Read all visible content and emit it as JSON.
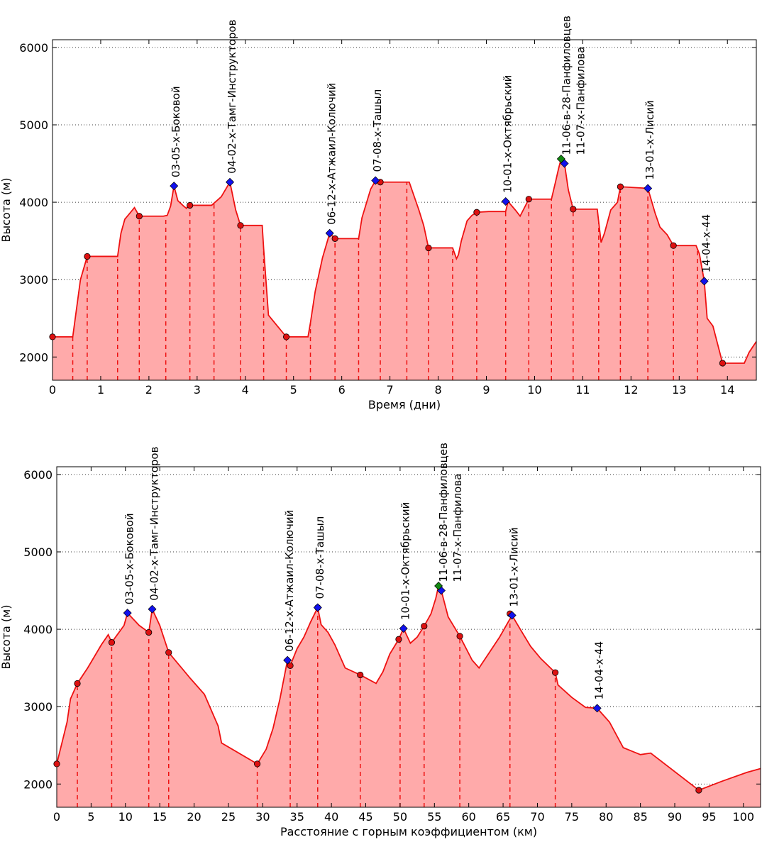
{
  "chart_data": [
    {
      "type": "area",
      "xlabel": "Время (дни)",
      "ylabel": "Высота (м)",
      "xlim": [
        0,
        14.6
      ],
      "ylim": [
        1700,
        6100
      ],
      "xticks": [
        0,
        1,
        2,
        3,
        4,
        5,
        6,
        7,
        8,
        9,
        10,
        11,
        12,
        13,
        14
      ],
      "yticks": [
        2000,
        3000,
        4000,
        5000,
        6000
      ],
      "grid": "horizontal-dotted",
      "colors": {
        "line": "#ee1111",
        "fill": "#ffaaaa",
        "camp": "#dd1111",
        "pass": "#1111ee",
        "summit": "#118811"
      },
      "profile": [
        [
          0.0,
          2260
        ],
        [
          0.42,
          2260
        ],
        [
          0.58,
          3000
        ],
        [
          0.72,
          3300
        ],
        [
          1.05,
          3300
        ],
        [
          1.35,
          3300
        ],
        [
          1.42,
          3600
        ],
        [
          1.5,
          3780
        ],
        [
          1.62,
          3870
        ],
        [
          1.7,
          3930
        ],
        [
          1.8,
          3820
        ],
        [
          2.3,
          3820
        ],
        [
          2.38,
          3830
        ],
        [
          2.45,
          3950
        ],
        [
          2.52,
          4210
        ],
        [
          2.6,
          4020
        ],
        [
          2.72,
          3950
        ],
        [
          2.78,
          3920
        ],
        [
          2.82,
          3960
        ],
        [
          2.95,
          3960
        ],
        [
          3.3,
          3960
        ],
        [
          3.5,
          4070
        ],
        [
          3.68,
          4260
        ],
        [
          3.8,
          3900
        ],
        [
          3.9,
          3700
        ],
        [
          4.35,
          3700
        ],
        [
          4.38,
          3400
        ],
        [
          4.48,
          2540
        ],
        [
          4.85,
          2260
        ],
        [
          5.3,
          2260
        ],
        [
          5.35,
          2440
        ],
        [
          5.45,
          2850
        ],
        [
          5.6,
          3280
        ],
        [
          5.75,
          3600
        ],
        [
          5.86,
          3530
        ],
        [
          6.35,
          3530
        ],
        [
          6.42,
          3800
        ],
        [
          6.6,
          4170
        ],
        [
          6.7,
          4280
        ],
        [
          6.8,
          4260
        ],
        [
          7.4,
          4260
        ],
        [
          7.6,
          3900
        ],
        [
          7.7,
          3700
        ],
        [
          7.8,
          3410
        ],
        [
          8.3,
          3410
        ],
        [
          8.38,
          3270
        ],
        [
          8.42,
          3320
        ],
        [
          8.48,
          3500
        ],
        [
          8.6,
          3760
        ],
        [
          8.7,
          3830
        ],
        [
          8.8,
          3870
        ],
        [
          9.05,
          3880
        ],
        [
          9.4,
          3880
        ],
        [
          9.45,
          4010
        ],
        [
          9.6,
          3900
        ],
        [
          9.7,
          3820
        ],
        [
          9.88,
          4040
        ],
        [
          10.35,
          4040
        ],
        [
          10.43,
          4250
        ],
        [
          10.5,
          4440
        ],
        [
          10.55,
          4560
        ],
        [
          10.62,
          4500
        ],
        [
          10.7,
          4160
        ],
        [
          10.8,
          3910
        ],
        [
          11.3,
          3910
        ],
        [
          11.38,
          3480
        ],
        [
          11.45,
          3600
        ],
        [
          11.58,
          3900
        ],
        [
          11.72,
          4000
        ],
        [
          11.78,
          4200
        ],
        [
          12.35,
          4180
        ],
        [
          12.5,
          3860
        ],
        [
          12.6,
          3680
        ],
        [
          12.75,
          3580
        ],
        [
          12.88,
          3440
        ],
        [
          13.35,
          3440
        ],
        [
          13.42,
          3330
        ],
        [
          13.52,
          2980
        ],
        [
          13.58,
          2500
        ],
        [
          13.7,
          2400
        ],
        [
          13.9,
          1920
        ],
        [
          14.35,
          1920
        ],
        [
          14.45,
          2060
        ],
        [
          14.6,
          2200
        ]
      ],
      "dashes": [
        0.42,
        0.72,
        1.35,
        1.8,
        2.35,
        2.85,
        3.35,
        3.9,
        4.38,
        4.85,
        5.35,
        5.86,
        6.35,
        6.8,
        7.35,
        7.8,
        8.3,
        8.8,
        9.4,
        9.88,
        10.35,
        10.8,
        11.33,
        11.78,
        12.35,
        12.88,
        13.38
      ],
      "camps": [
        [
          0.0,
          2260
        ],
        [
          0.72,
          3300
        ],
        [
          1.8,
          3820
        ],
        [
          2.85,
          3960
        ],
        [
          3.9,
          3700
        ],
        [
          4.85,
          2260
        ],
        [
          5.86,
          3530
        ],
        [
          6.8,
          4260
        ],
        [
          7.8,
          3410
        ],
        [
          8.8,
          3870
        ],
        [
          9.88,
          4040
        ],
        [
          10.8,
          3910
        ],
        [
          11.78,
          4200
        ],
        [
          12.88,
          3440
        ],
        [
          13.9,
          1920
        ]
      ],
      "passes": [
        {
          "x": 2.52,
          "y": 4210,
          "label": "03-05-х-Боковой",
          "lines": [
            "03-05-х-Боковой"
          ]
        },
        {
          "x": 3.68,
          "y": 4260,
          "label": "04-02-х-Тамг-Инструкторов",
          "lines": [
            "04-02-х-Тамг-Инструкторов"
          ]
        },
        {
          "x": 5.75,
          "y": 3600,
          "label": "06-12-х-Атжаил-Колючий",
          "lines": [
            "06-12-х-Атжаил-Колючий"
          ]
        },
        {
          "x": 6.7,
          "y": 4280,
          "label": "07-08-х-Ташыл",
          "lines": [
            "07-08-х-Ташыл"
          ]
        },
        {
          "x": 9.4,
          "y": 4010,
          "label": "10-01-х-Октябрьский",
          "lines": [
            "10-01-х-Октябрьский"
          ]
        },
        {
          "x": 10.62,
          "y": 4500,
          "label": "11-06-в-28-Панфиловцев",
          "lines": [
            "11-06-в-28-Панфиловцев",
            "11-07-х-Панфилова"
          ]
        },
        {
          "x": 12.35,
          "y": 4180,
          "label": "13-01-х-Лисий",
          "lines": [
            "13-01-х-Лисий"
          ]
        },
        {
          "x": 13.52,
          "y": 2980,
          "label": "14-04-х-44",
          "lines": [
            "14-04-х-44"
          ]
        }
      ],
      "summits": [
        [
          10.55,
          4560
        ]
      ]
    },
    {
      "type": "area",
      "xlabel": "Расстояние с горным коэффициентом (км)",
      "ylabel": "Высота (м)",
      "xlim": [
        0,
        102.5
      ],
      "ylim": [
        1700,
        6100
      ],
      "xticks": [
        0,
        5,
        10,
        15,
        20,
        25,
        30,
        35,
        40,
        45,
        50,
        55,
        60,
        65,
        70,
        75,
        80,
        85,
        90,
        95,
        100
      ],
      "yticks": [
        2000,
        3000,
        4000,
        5000,
        6000
      ],
      "grid": "horizontal-dotted",
      "colors": {
        "line": "#ee1111",
        "fill": "#ffaaaa",
        "camp": "#dd1111",
        "pass": "#1111ee",
        "summit": "#118811"
      },
      "profile": [
        [
          0.0,
          2260
        ],
        [
          1.5,
          2800
        ],
        [
          2.0,
          3100
        ],
        [
          3.0,
          3300
        ],
        [
          4.5,
          3500
        ],
        [
          6.5,
          3800
        ],
        [
          7.5,
          3930
        ],
        [
          8.0,
          3830
        ],
        [
          9.8,
          4050
        ],
        [
          10.3,
          4210
        ],
        [
          12.0,
          4050
        ],
        [
          13.4,
          3960
        ],
        [
          13.9,
          4260
        ],
        [
          15.0,
          4050
        ],
        [
          16.3,
          3700
        ],
        [
          19.5,
          3360
        ],
        [
          21.5,
          3160
        ],
        [
          23.5,
          2750
        ],
        [
          24.0,
          2530
        ],
        [
          29.2,
          2260
        ],
        [
          30.5,
          2450
        ],
        [
          31.5,
          2720
        ],
        [
          32.5,
          3100
        ],
        [
          33.6,
          3600
        ],
        [
          34.0,
          3530
        ],
        [
          35.0,
          3750
        ],
        [
          36.0,
          3900
        ],
        [
          37.0,
          4100
        ],
        [
          38.0,
          4280
        ],
        [
          38.5,
          4060
        ],
        [
          39.5,
          3960
        ],
        [
          40.5,
          3800
        ],
        [
          42.0,
          3500
        ],
        [
          44.2,
          3410
        ],
        [
          46.5,
          3300
        ],
        [
          47.5,
          3450
        ],
        [
          48.5,
          3680
        ],
        [
          49.8,
          3870
        ],
        [
          50.5,
          4010
        ],
        [
          51.5,
          3820
        ],
        [
          52.5,
          3900
        ],
        [
          53.5,
          4040
        ],
        [
          54.5,
          4200
        ],
        [
          55.2,
          4400
        ],
        [
          55.6,
          4560
        ],
        [
          56.0,
          4500
        ],
        [
          57.0,
          4160
        ],
        [
          58.7,
          3910
        ],
        [
          60.5,
          3600
        ],
        [
          61.5,
          3500
        ],
        [
          63.0,
          3700
        ],
        [
          64.5,
          3900
        ],
        [
          66.3,
          4180
        ],
        [
          67.5,
          4000
        ],
        [
          69.0,
          3780
        ],
        [
          70.5,
          3620
        ],
        [
          72.6,
          3440
        ],
        [
          73.0,
          3280
        ],
        [
          75.0,
          3120
        ],
        [
          77.0,
          2990
        ],
        [
          78.7,
          2980
        ],
        [
          80.5,
          2800
        ],
        [
          82.5,
          2470
        ],
        [
          85.0,
          2380
        ],
        [
          86.5,
          2400
        ],
        [
          93.5,
          1920
        ],
        [
          97.0,
          2040
        ],
        [
          100.5,
          2150
        ],
        [
          102.5,
          2200
        ]
      ],
      "dashes": [
        3.0,
        8.0,
        13.4,
        16.3,
        29.2,
        34.0,
        38.0,
        44.2,
        50.0,
        53.5,
        58.7,
        66.0,
        72.6
      ],
      "camps": [
        [
          0.0,
          2260
        ],
        [
          3.0,
          3300
        ],
        [
          8.0,
          3830
        ],
        [
          13.4,
          3960
        ],
        [
          16.3,
          3700
        ],
        [
          29.2,
          2260
        ],
        [
          34.0,
          3530
        ],
        [
          38.0,
          4280
        ],
        [
          44.2,
          3410
        ],
        [
          49.8,
          3870
        ],
        [
          53.5,
          4040
        ],
        [
          58.7,
          3910
        ],
        [
          66.0,
          4200
        ],
        [
          72.6,
          3440
        ],
        [
          93.5,
          1920
        ]
      ],
      "passes": [
        {
          "x": 10.3,
          "y": 4210,
          "label": "03-05-х-Боковой",
          "lines": [
            "03-05-х-Боковой"
          ]
        },
        {
          "x": 13.9,
          "y": 4260,
          "label": "04-02-х-Тамг-Инструкторов",
          "lines": [
            "04-02-х-Тамг-Инструкторов"
          ]
        },
        {
          "x": 33.6,
          "y": 3600,
          "label": "06-12-х-Атжаил-Колючий",
          "lines": [
            "06-12-х-Атжаил-Колючий"
          ]
        },
        {
          "x": 38.0,
          "y": 4280,
          "label": "07-08-х-Ташыл",
          "lines": [
            "07-08-х-Ташыл"
          ]
        },
        {
          "x": 50.5,
          "y": 4010,
          "label": "10-01-х-Октябрьский",
          "lines": [
            "10-01-х-Октябрьский"
          ]
        },
        {
          "x": 56.0,
          "y": 4500,
          "label": "11-06-в-28-Панфиловцев",
          "lines": [
            "11-06-в-28-Панфиловцев",
            "11-07-х-Панфилова"
          ]
        },
        {
          "x": 66.3,
          "y": 4180,
          "label": "13-01-х-Лисий",
          "lines": [
            "13-01-х-Лисий"
          ]
        },
        {
          "x": 78.7,
          "y": 2980,
          "label": "14-04-х-44",
          "lines": [
            "14-04-х-44"
          ]
        }
      ],
      "summits": [
        [
          55.6,
          4560
        ]
      ]
    }
  ]
}
